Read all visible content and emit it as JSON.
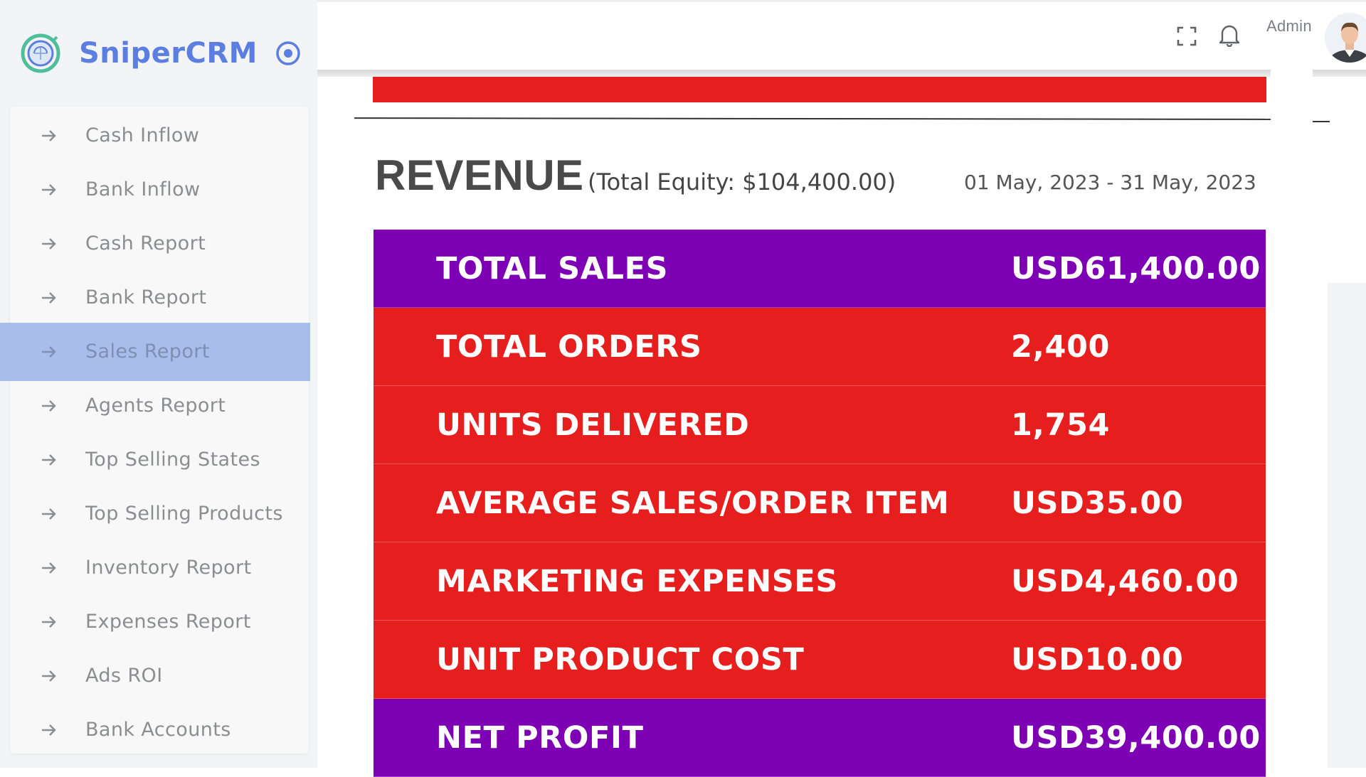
{
  "brand": {
    "name": "SniperCRM"
  },
  "sidebar": {
    "items": [
      {
        "label": "Cash Inflow",
        "active": false
      },
      {
        "label": "Bank Inflow",
        "active": false
      },
      {
        "label": "Cash Report",
        "active": false
      },
      {
        "label": "Bank Report",
        "active": false
      },
      {
        "label": "Sales Report",
        "active": true
      },
      {
        "label": "Agents Report",
        "active": false
      },
      {
        "label": "Top Selling States",
        "active": false
      },
      {
        "label": "Top Selling Products",
        "active": false
      },
      {
        "label": "Inventory Report",
        "active": false
      },
      {
        "label": "Expenses Report",
        "active": false
      },
      {
        "label": "Ads ROI",
        "active": false
      },
      {
        "label": "Bank Accounts",
        "active": false
      }
    ]
  },
  "header": {
    "user_label": "Admin",
    "icons": [
      "fullscreen-icon",
      "bell-icon",
      "avatar"
    ]
  },
  "report": {
    "title": "REVENUE",
    "equity": "(Total Equity: $104,400.00)",
    "period": "01 May, 2023 - 31 May, 2023",
    "rows": [
      {
        "label": "TOTAL SALES",
        "value": "USD61,400.00",
        "color": "#7d00b4"
      },
      {
        "label": "TOTAL ORDERS",
        "value": "2,400",
        "color": "#e61e1e"
      },
      {
        "label": "UNITS DELIVERED",
        "value": "1,754",
        "color": "#e61e1e"
      },
      {
        "label": "AVERAGE SALES/ORDER ITEM",
        "value": "USD35.00",
        "color": "#e61e1e"
      },
      {
        "label": "MARKETING EXPENSES",
        "value": "USD4,460.00",
        "color": "#e61e1e"
      },
      {
        "label": "UNIT PRODUCT COST",
        "value": "USD10.00",
        "color": "#e61e1e"
      },
      {
        "label": "NET PROFIT",
        "value": "USD39,400.00",
        "color": "#7d00b4"
      }
    ]
  },
  "colors": {
    "brand": "#5b7ee0",
    "active_item_bg": "#a8bdeb",
    "row_purple": "#7d00b4",
    "row_red": "#e61e1e"
  }
}
